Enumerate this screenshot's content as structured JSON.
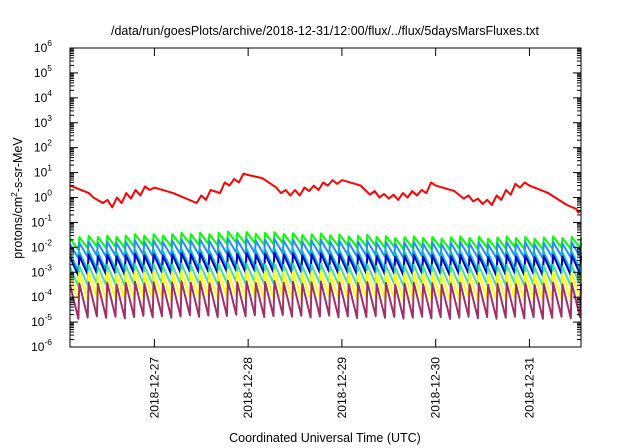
{
  "chart_data": {
    "type": "line",
    "title": "/data/run/goesPlots/archive/2018-12-31/12:00/flux/../flux/5daysMarsFluxes.txt",
    "xlabel": "Coordinated Universal Time (UTC)",
    "ylabel": {
      "base": "protons/cm",
      "sup": "2",
      "rest": "-s-sr-MeV"
    },
    "y_scale": "log",
    "ylim": [
      1e-06,
      1000000.0
    ],
    "y_ticks": [
      {
        "base": "10",
        "exp": "-6",
        "value": 1e-06
      },
      {
        "base": "10",
        "exp": "-5",
        "value": 1e-05
      },
      {
        "base": "10",
        "exp": "-4",
        "value": 0.0001
      },
      {
        "base": "10",
        "exp": "-3",
        "value": 0.001
      },
      {
        "base": "10",
        "exp": "-2",
        "value": 0.01
      },
      {
        "base": "10",
        "exp": "-1",
        "value": 0.1
      },
      {
        "base": "10",
        "exp": "0",
        "value": 1
      },
      {
        "base": "10",
        "exp": "1",
        "value": 10
      },
      {
        "base": "10",
        "exp": "2",
        "value": 100
      },
      {
        "base": "10",
        "exp": "3",
        "value": 1000
      },
      {
        "base": "10",
        "exp": "4",
        "value": 10000
      },
      {
        "base": "10",
        "exp": "5",
        "value": 100000
      },
      {
        "base": "10",
        "exp": "6",
        "value": 1000000
      }
    ],
    "x_unit": "days",
    "xlim": [
      26.1,
      31.55
    ],
    "x_ticks": [
      {
        "label": "2018-12-27",
        "value": 27
      },
      {
        "label": "2018-12-28",
        "value": 28
      },
      {
        "label": "2018-12-29",
        "value": 29
      },
      {
        "label": "2018-12-30",
        "value": 30
      },
      {
        "label": "2018-12-31",
        "value": 31
      }
    ],
    "grid": false,
    "legend": "none",
    "series": [
      {
        "color": "#ff0000",
        "style": "line",
        "x": [
          26.1,
          26.3,
          26.35,
          26.45,
          26.5,
          26.55,
          26.6,
          26.65,
          26.7,
          26.75,
          26.8,
          26.85,
          26.9,
          26.95,
          27.0,
          27.2,
          27.45,
          27.5,
          27.55,
          27.6,
          27.7,
          27.75,
          27.8,
          27.85,
          27.9,
          27.95,
          28.0,
          28.15,
          28.3,
          28.35,
          28.4,
          28.45,
          28.5,
          28.55,
          28.6,
          28.65,
          28.7,
          28.75,
          28.8,
          28.85,
          28.9,
          28.95,
          29.0,
          29.2,
          29.3,
          29.35,
          29.4,
          29.45,
          29.5,
          29.55,
          29.6,
          29.65,
          29.7,
          29.75,
          29.8,
          29.85,
          29.9,
          29.95,
          30.0,
          30.2,
          30.3,
          30.35,
          30.4,
          30.45,
          30.5,
          30.55,
          30.6,
          30.65,
          30.7,
          30.75,
          30.8,
          30.85,
          30.9,
          30.95,
          31.0,
          31.2,
          31.4,
          31.5,
          31.52,
          31.55
        ],
        "y": [
          3,
          1.5,
          1.0,
          0.6,
          0.8,
          0.4,
          1.0,
          0.6,
          1.5,
          0.9,
          2.0,
          1.2,
          2.8,
          2.0,
          2.5,
          1.5,
          0.6,
          1.2,
          0.8,
          2.0,
          1.5,
          4.0,
          3.0,
          5.5,
          4.0,
          9.0,
          8.0,
          6.0,
          2.5,
          1.5,
          2.0,
          1.2,
          2.0,
          1.2,
          2.5,
          1.8,
          3.0,
          2.0,
          4.0,
          3.0,
          5.0,
          3.5,
          5.0,
          3.0,
          1.3,
          1.8,
          1.0,
          1.4,
          0.9,
          1.3,
          0.8,
          1.5,
          1.0,
          1.8,
          1.2,
          2.0,
          1.5,
          4.0,
          3.0,
          1.8,
          0.9,
          1.2,
          0.7,
          0.9,
          0.55,
          0.8,
          0.5,
          1.2,
          0.8,
          2.0,
          1.3,
          3.5,
          2.5,
          4.0,
          3.0,
          1.5,
          0.5,
          0.35,
          0.25,
          0.3
        ]
      },
      {
        "color": "#00ff00",
        "style": "sawtooth",
        "n": 55,
        "high": 0.025,
        "low": 0.009,
        "trend": [
          1.0,
          1.6,
          1.0,
          1.0
        ]
      },
      {
        "color": "#1e90ff",
        "style": "sawtooth",
        "n": 55,
        "high": 0.015,
        "low": 0.004,
        "trend": [
          1.0,
          1.4,
          1.0,
          1.0
        ]
      },
      {
        "color": "#00c0c0",
        "style": "sawtooth",
        "n": 55,
        "high": 0.0065,
        "low": 0.0012,
        "trend": [
          1.0,
          1.3,
          1.0,
          1.0
        ]
      },
      {
        "color": "#0000cc",
        "style": "sawtooth",
        "n": 55,
        "high": 0.0045,
        "low": 0.0008,
        "trend": [
          1.0,
          1.3,
          1.0,
          1.0
        ]
      },
      {
        "color": "#40e0a0",
        "style": "sawtooth",
        "n": 55,
        "high": 0.0018,
        "low": 0.0003,
        "trend": [
          1.0,
          1.2,
          1.0,
          1.0
        ]
      },
      {
        "color": "#ffff00",
        "style": "sawtooth",
        "n": 55,
        "high": 0.0009,
        "low": 8e-05,
        "trend": [
          1.0,
          1.2,
          1.0,
          1.0
        ]
      },
      {
        "color": "#a0306a",
        "style": "sawtooth",
        "n": 55,
        "high": 0.00035,
        "low": 1.5e-05,
        "trend": [
          1.0,
          1.2,
          1.0,
          1.0
        ]
      }
    ]
  }
}
